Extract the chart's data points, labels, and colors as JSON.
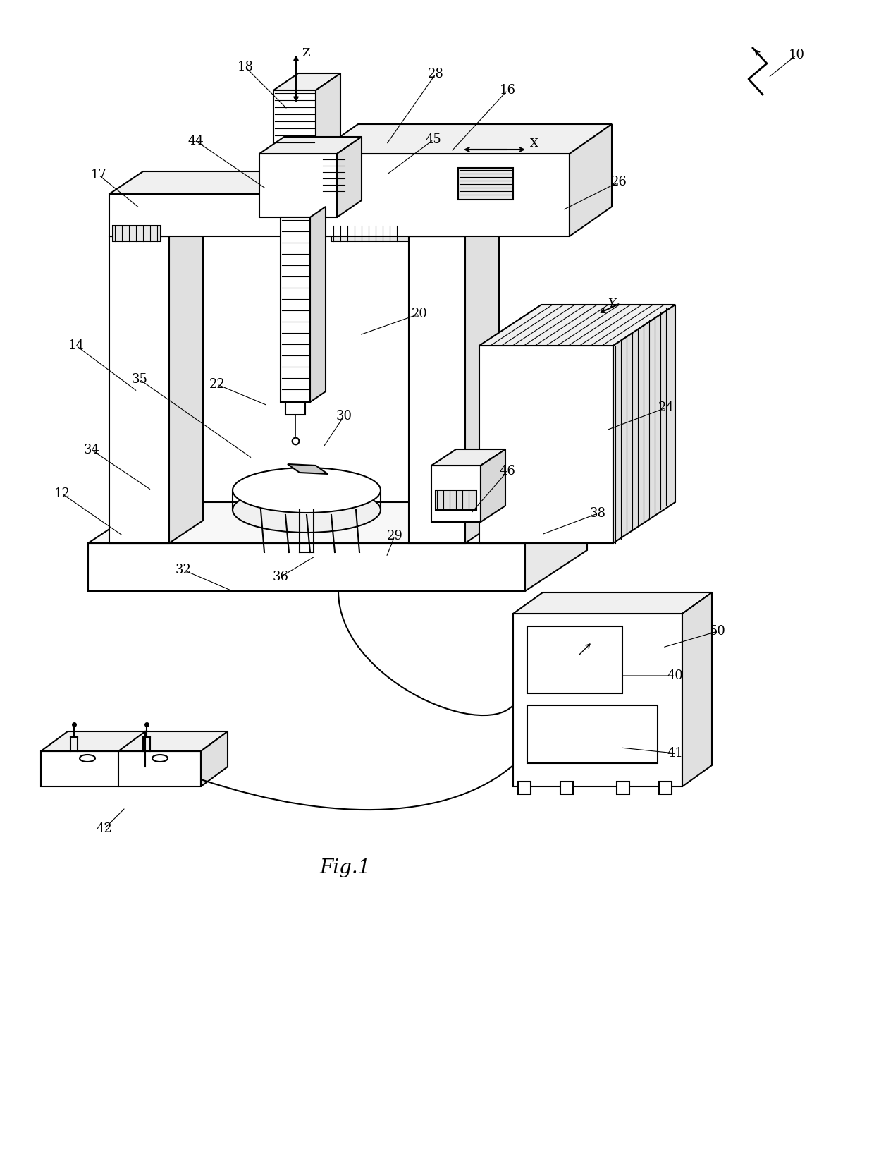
{
  "bg_color": "#ffffff",
  "line_color": "#000000",
  "fig_caption": "Fig.1",
  "annotations": [
    [
      "10",
      1130,
      78,
      1090,
      110
    ],
    [
      "12",
      88,
      700,
      175,
      760
    ],
    [
      "14",
      108,
      490,
      195,
      555
    ],
    [
      "16",
      720,
      128,
      640,
      215
    ],
    [
      "17",
      140,
      248,
      198,
      295
    ],
    [
      "18",
      348,
      95,
      408,
      155
    ],
    [
      "20",
      595,
      445,
      510,
      475
    ],
    [
      "22",
      308,
      545,
      380,
      575
    ],
    [
      "24",
      945,
      578,
      860,
      610
    ],
    [
      "26",
      878,
      258,
      798,
      298
    ],
    [
      "28",
      618,
      105,
      548,
      205
    ],
    [
      "29",
      560,
      760,
      548,
      790
    ],
    [
      "30",
      488,
      590,
      458,
      635
    ],
    [
      "32",
      260,
      808,
      330,
      838
    ],
    [
      "34",
      130,
      638,
      215,
      695
    ],
    [
      "35",
      198,
      538,
      358,
      650
    ],
    [
      "36",
      398,
      818,
      448,
      788
    ],
    [
      "38",
      848,
      728,
      768,
      758
    ],
    [
      "40",
      958,
      958,
      880,
      958
    ],
    [
      "41",
      958,
      1068,
      880,
      1060
    ],
    [
      "42",
      148,
      1175,
      178,
      1145
    ],
    [
      "44",
      278,
      200,
      378,
      268
    ],
    [
      "45",
      615,
      198,
      548,
      248
    ],
    [
      "46",
      720,
      668,
      668,
      728
    ],
    [
      "50",
      1018,
      895,
      940,
      918
    ]
  ]
}
